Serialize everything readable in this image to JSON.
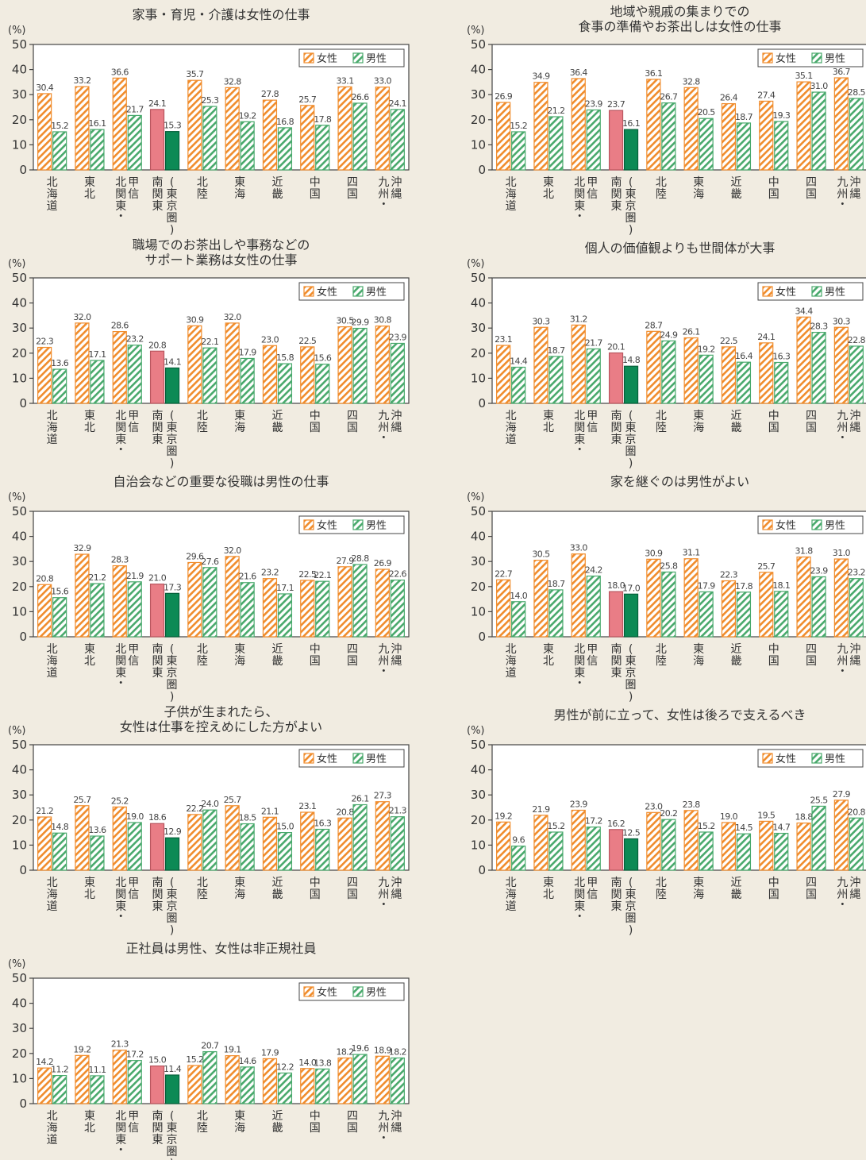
{
  "unit_label": "(%)",
  "legend": {
    "female": "女性",
    "male": "男性"
  },
  "regions": [
    "北海道",
    "東北",
    "北関東・甲信",
    "南関東",
    "(東京圏)",
    "北陸",
    "東海",
    "近畿",
    "中国",
    "四国",
    "九州・沖縄"
  ],
  "colors": {
    "female": "#f08c2c",
    "male": "#49a96c",
    "south_kanto": "#e97d86",
    "tokyo": "#0c8a55",
    "background": "#f1ece1",
    "plot": "#ffffff"
  },
  "chart_data": [
    {
      "type": "bar",
      "title": [
        "家事・育児・介護は女性の仕事"
      ],
      "categories": [
        "北海道",
        "東北",
        "北関東・甲信",
        "南関東",
        "(東京圏)",
        "北陸",
        "東海",
        "近畿",
        "中国",
        "四国",
        "九州・沖縄"
      ],
      "ylim": [
        0,
        50
      ],
      "yticks": [
        0,
        10,
        20,
        30,
        40,
        50
      ],
      "legend_position": "top-right",
      "series": [
        {
          "name": "女性",
          "values": [
            30.4,
            33.2,
            36.6,
            24.1,
            null,
            35.7,
            32.8,
            27.8,
            25.7,
            33.1,
            33.0
          ]
        },
        {
          "name": "男性",
          "values": [
            15.2,
            16.1,
            21.7,
            null,
            15.3,
            25.3,
            19.2,
            16.8,
            17.8,
            26.6,
            24.1
          ]
        }
      ]
    },
    {
      "type": "bar",
      "title": [
        "地域や親戚の集まりでの",
        "食事の準備やお茶出しは女性の仕事"
      ],
      "categories": [
        "北海道",
        "東北",
        "北関東・甲信",
        "南関東",
        "(東京圏)",
        "北陸",
        "東海",
        "近畿",
        "中国",
        "四国",
        "九州・沖縄"
      ],
      "ylim": [
        0,
        50
      ],
      "yticks": [
        0,
        10,
        20,
        30,
        40,
        50
      ],
      "legend_position": "top-right",
      "series": [
        {
          "name": "女性",
          "values": [
            26.9,
            34.9,
            36.4,
            23.7,
            null,
            36.1,
            32.8,
            26.4,
            27.4,
            35.1,
            36.7
          ]
        },
        {
          "name": "男性",
          "values": [
            15.2,
            21.2,
            23.9,
            null,
            16.1,
            26.7,
            20.5,
            18.7,
            19.3,
            31.0,
            28.5
          ]
        }
      ]
    },
    {
      "type": "bar",
      "title": [
        "職場でのお茶出しや事務などの",
        "サポート業務は女性の仕事"
      ],
      "categories": [
        "北海道",
        "東北",
        "北関東・甲信",
        "南関東",
        "(東京圏)",
        "北陸",
        "東海",
        "近畿",
        "中国",
        "四国",
        "九州・沖縄"
      ],
      "ylim": [
        0,
        50
      ],
      "yticks": [
        0,
        10,
        20,
        30,
        40,
        50
      ],
      "legend_position": "top-right",
      "series": [
        {
          "name": "女性",
          "values": [
            22.3,
            32.0,
            28.6,
            20.8,
            null,
            30.9,
            32.0,
            23.0,
            22.5,
            30.5,
            30.8
          ]
        },
        {
          "name": "男性",
          "values": [
            13.6,
            17.1,
            23.2,
            null,
            14.1,
            22.1,
            17.9,
            15.8,
            15.6,
            29.9,
            23.9
          ]
        }
      ]
    },
    {
      "type": "bar",
      "title": [
        "個人の価値観よりも世間体が大事"
      ],
      "categories": [
        "北海道",
        "東北",
        "北関東・甲信",
        "南関東",
        "(東京圏)",
        "北陸",
        "東海",
        "近畿",
        "中国",
        "四国",
        "九州・沖縄"
      ],
      "ylim": [
        0,
        50
      ],
      "yticks": [
        0,
        10,
        20,
        30,
        40,
        50
      ],
      "legend_position": "top-right",
      "series": [
        {
          "name": "女性",
          "values": [
            23.1,
            30.3,
            31.2,
            20.1,
            null,
            28.7,
            26.1,
            22.5,
            24.1,
            34.4,
            30.3
          ]
        },
        {
          "name": "男性",
          "values": [
            14.4,
            18.7,
            21.7,
            null,
            14.8,
            24.9,
            19.2,
            16.4,
            16.3,
            28.3,
            22.8
          ]
        }
      ]
    },
    {
      "type": "bar",
      "title": [
        "自治会などの重要な役職は男性の仕事"
      ],
      "categories": [
        "北海道",
        "東北",
        "北関東・甲信",
        "南関東",
        "(東京圏)",
        "北陸",
        "東海",
        "近畿",
        "中国",
        "四国",
        "九州・沖縄"
      ],
      "ylim": [
        0,
        50
      ],
      "yticks": [
        0,
        10,
        20,
        30,
        40,
        50
      ],
      "legend_position": "top-right",
      "series": [
        {
          "name": "女性",
          "values": [
            20.8,
            32.9,
            28.3,
            21.0,
            null,
            29.6,
            32.0,
            23.2,
            22.5,
            27.9,
            26.9
          ]
        },
        {
          "name": "男性",
          "values": [
            15.6,
            21.2,
            21.9,
            null,
            17.3,
            27.6,
            21.6,
            17.1,
            22.1,
            28.8,
            22.6
          ]
        }
      ]
    },
    {
      "type": "bar",
      "title": [
        "家を継ぐのは男性がよい"
      ],
      "categories": [
        "北海道",
        "東北",
        "北関東・甲信",
        "南関東",
        "(東京圏)",
        "北陸",
        "東海",
        "近畿",
        "中国",
        "四国",
        "九州・沖縄"
      ],
      "ylim": [
        0,
        50
      ],
      "yticks": [
        0,
        10,
        20,
        30,
        40,
        50
      ],
      "legend_position": "top-right",
      "series": [
        {
          "name": "女性",
          "values": [
            22.7,
            30.5,
            33.0,
            18.0,
            null,
            30.9,
            31.1,
            22.3,
            25.7,
            31.8,
            31.0
          ]
        },
        {
          "name": "男性",
          "values": [
            14.0,
            18.7,
            24.2,
            null,
            17.0,
            25.8,
            17.9,
            17.8,
            18.1,
            23.9,
            23.2
          ]
        }
      ]
    },
    {
      "type": "bar",
      "title": [
        "子供が生まれたら、",
        "女性は仕事を控えめにした方がよい"
      ],
      "categories": [
        "北海道",
        "東北",
        "北関東・甲信",
        "南関東",
        "(東京圏)",
        "北陸",
        "東海",
        "近畿",
        "中国",
        "四国",
        "九州・沖縄"
      ],
      "ylim": [
        0,
        50
      ],
      "yticks": [
        0,
        10,
        20,
        30,
        40,
        50
      ],
      "legend_position": "top-right",
      "series": [
        {
          "name": "女性",
          "values": [
            21.2,
            25.7,
            25.2,
            18.6,
            null,
            22.2,
            25.7,
            21.1,
            23.1,
            20.8,
            27.3
          ]
        },
        {
          "name": "男性",
          "values": [
            14.8,
            13.6,
            19.0,
            null,
            12.9,
            24.0,
            18.5,
            15.0,
            16.3,
            26.1,
            21.3
          ]
        }
      ]
    },
    {
      "type": "bar",
      "title": [
        "男性が前に立って、女性は後ろで支えるべき"
      ],
      "categories": [
        "北海道",
        "東北",
        "北関東・甲信",
        "南関東",
        "(東京圏)",
        "北陸",
        "東海",
        "近畿",
        "中国",
        "四国",
        "九州・沖縄"
      ],
      "ylim": [
        0,
        50
      ],
      "yticks": [
        0,
        10,
        20,
        30,
        40,
        50
      ],
      "legend_position": "top-right",
      "series": [
        {
          "name": "女性",
          "values": [
            19.2,
            21.9,
            23.9,
            16.2,
            null,
            23.0,
            23.8,
            19.0,
            19.5,
            18.8,
            27.9
          ]
        },
        {
          "name": "男性",
          "values": [
            9.6,
            15.2,
            17.2,
            null,
            12.5,
            20.2,
            15.2,
            14.5,
            14.7,
            25.5,
            20.8
          ]
        }
      ]
    },
    {
      "type": "bar",
      "title": [
        "正社員は男性、女性は非正規社員"
      ],
      "categories": [
        "北海道",
        "東北",
        "北関東・甲信",
        "南関東",
        "(東京圏)",
        "北陸",
        "東海",
        "近畿",
        "中国",
        "四国",
        "九州・沖縄"
      ],
      "ylim": [
        0,
        50
      ],
      "yticks": [
        0,
        10,
        20,
        30,
        40,
        50
      ],
      "legend_position": "top-right",
      "series": [
        {
          "name": "女性",
          "values": [
            14.2,
            19.2,
            21.3,
            15.0,
            null,
            15.2,
            19.1,
            17.9,
            14.0,
            18.2,
            18.9
          ]
        },
        {
          "name": "男性",
          "values": [
            11.2,
            11.1,
            17.2,
            null,
            11.4,
            20.7,
            14.6,
            12.2,
            13.8,
            19.6,
            18.2
          ]
        }
      ]
    }
  ]
}
